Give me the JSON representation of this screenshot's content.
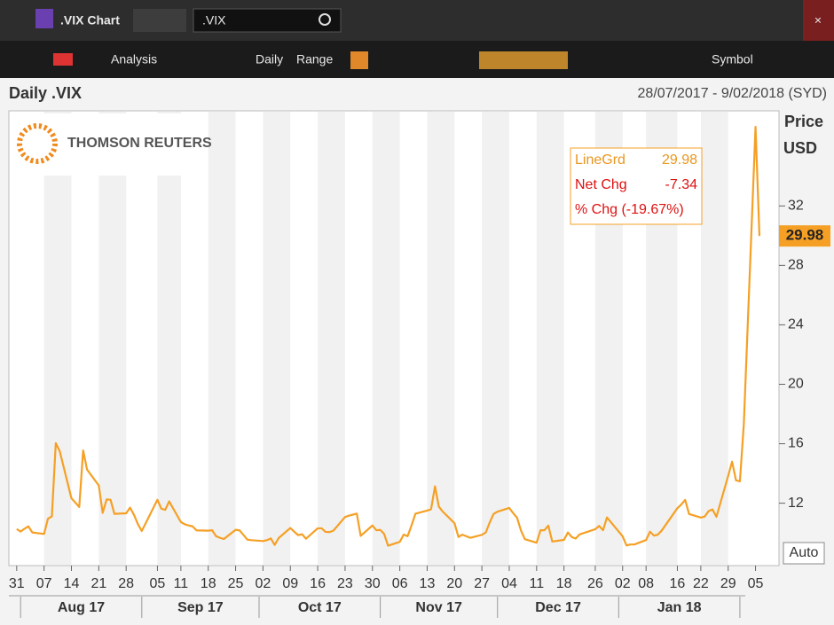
{
  "window": {
    "title": ".VIX Chart",
    "search": ".VIX"
  },
  "toolbar": {
    "analysis": "Analysis",
    "interval": "Daily",
    "range": "Range",
    "symbol": "Symbol"
  },
  "chart_data": {
    "type": "line",
    "title": "Daily .VIX",
    "subtitle": "28/07/2017 - 9/02/2018 (SYD)",
    "logo": "THOMSON REUTERS",
    "y_label": "Price",
    "y_unit": "USD",
    "auto_button": "Auto",
    "info": {
      "net_chg_label": "Net Chg",
      "net_chg": "-7.34",
      "pct_chg": "% Chg (-19.67%)",
      "last": "29.98"
    },
    "xlim": [
      "2017-07-29",
      "2018-02-11"
    ],
    "ylim": [
      7.8,
      38.4
    ],
    "yticks": [
      12,
      16,
      20,
      24,
      28,
      32
    ],
    "xticks": [
      {
        "value": "2017-07-31",
        "label": "31"
      },
      {
        "value": "2017-08-07",
        "label": "07"
      },
      {
        "value": "2017-08-14",
        "label": "14"
      },
      {
        "value": "2017-08-21",
        "label": "21"
      },
      {
        "value": "2017-08-28",
        "label": "28"
      },
      {
        "value": "2017-09-05",
        "label": "05"
      },
      {
        "value": "2017-09-11",
        "label": "11"
      },
      {
        "value": "2017-09-18",
        "label": "18"
      },
      {
        "value": "2017-09-25",
        "label": "25"
      },
      {
        "value": "2017-10-02",
        "label": "02"
      },
      {
        "value": "2017-10-09",
        "label": "09"
      },
      {
        "value": "2017-10-16",
        "label": "16"
      },
      {
        "value": "2017-10-23",
        "label": "23"
      },
      {
        "value": "2017-10-30",
        "label": "30"
      },
      {
        "value": "2017-11-06",
        "label": "06"
      },
      {
        "value": "2017-11-13",
        "label": "13"
      },
      {
        "value": "2017-11-20",
        "label": "20"
      },
      {
        "value": "2017-11-27",
        "label": "27"
      },
      {
        "value": "2017-12-04",
        "label": "04"
      },
      {
        "value": "2017-12-11",
        "label": "11"
      },
      {
        "value": "2017-12-18",
        "label": "18"
      },
      {
        "value": "2017-12-26",
        "label": "26"
      },
      {
        "value": "2018-01-02",
        "label": "02"
      },
      {
        "value": "2018-01-08",
        "label": "08"
      },
      {
        "value": "2018-01-16",
        "label": "16"
      },
      {
        "value": "2018-01-22",
        "label": "22"
      },
      {
        "value": "2018-01-29",
        "label": "29"
      },
      {
        "value": "2018-02-05",
        "label": "05"
      }
    ],
    "month_labels": [
      {
        "value": "2017-08",
        "label": "Aug 17"
      },
      {
        "value": "2017-09",
        "label": "Sep 17"
      },
      {
        "value": "2017-10",
        "label": "Oct 17"
      },
      {
        "value": "2017-11",
        "label": "Nov 17"
      },
      {
        "value": "2017-12",
        "label": "Dec 17"
      },
      {
        "value": "2018-01",
        "label": "Jan 18"
      }
    ],
    "x": [
      "2017-07-31",
      "2017-08-01",
      "2017-08-02",
      "2017-08-03",
      "2017-08-04",
      "2017-08-07",
      "2017-08-08",
      "2017-08-09",
      "2017-08-10",
      "2017-08-11",
      "2017-08-14",
      "2017-08-15",
      "2017-08-16",
      "2017-08-17",
      "2017-08-18",
      "2017-08-21",
      "2017-08-22",
      "2017-08-23",
      "2017-08-24",
      "2017-08-25",
      "2017-08-28",
      "2017-08-29",
      "2017-08-30",
      "2017-08-31",
      "2017-09-01",
      "2017-09-05",
      "2017-09-06",
      "2017-09-07",
      "2017-09-08",
      "2017-09-11",
      "2017-09-12",
      "2017-09-13",
      "2017-09-14",
      "2017-09-15",
      "2017-09-18",
      "2017-09-19",
      "2017-09-20",
      "2017-09-21",
      "2017-09-22",
      "2017-09-25",
      "2017-09-26",
      "2017-09-27",
      "2017-09-28",
      "2017-09-29",
      "2017-10-02",
      "2017-10-03",
      "2017-10-04",
      "2017-10-05",
      "2017-10-06",
      "2017-10-09",
      "2017-10-10",
      "2017-10-11",
      "2017-10-12",
      "2017-10-13",
      "2017-10-16",
      "2017-10-17",
      "2017-10-18",
      "2017-10-19",
      "2017-10-20",
      "2017-10-23",
      "2017-10-24",
      "2017-10-25",
      "2017-10-26",
      "2017-10-27",
      "2017-10-30",
      "2017-10-31",
      "2017-11-01",
      "2017-11-02",
      "2017-11-03",
      "2017-11-06",
      "2017-11-07",
      "2017-11-08",
      "2017-11-09",
      "2017-11-10",
      "2017-11-13",
      "2017-11-14",
      "2017-11-15",
      "2017-11-16",
      "2017-11-17",
      "2017-11-20",
      "2017-11-21",
      "2017-11-22",
      "2017-11-24",
      "2017-11-27",
      "2017-11-28",
      "2017-11-29",
      "2017-11-30",
      "2017-12-01",
      "2017-12-04",
      "2017-12-05",
      "2017-12-06",
      "2017-12-07",
      "2017-12-08",
      "2017-12-11",
      "2017-12-12",
      "2017-12-13",
      "2017-12-14",
      "2017-12-15",
      "2017-12-18",
      "2017-12-19",
      "2017-12-20",
      "2017-12-21",
      "2017-12-22",
      "2017-12-26",
      "2017-12-27",
      "2017-12-28",
      "2017-12-29",
      "2018-01-02",
      "2018-01-03",
      "2018-01-04",
      "2018-01-05",
      "2018-01-08",
      "2018-01-09",
      "2018-01-10",
      "2018-01-11",
      "2018-01-12",
      "2018-01-16",
      "2018-01-17",
      "2018-01-18",
      "2018-01-19",
      "2018-01-22",
      "2018-01-23",
      "2018-01-24",
      "2018-01-25",
      "2018-01-26",
      "2018-01-29",
      "2018-01-30",
      "2018-01-31",
      "2018-02-01",
      "2018-02-02",
      "2018-02-05",
      "2018-02-06"
    ],
    "series": [
      {
        "name": "LineGrd",
        "color": "#f5a025",
        "values": [
          10.26,
          10.09,
          10.28,
          10.44,
          10.03,
          9.93,
          10.96,
          11.11,
          16.04,
          15.51,
          12.33,
          12.04,
          11.74,
          15.55,
          14.26,
          13.19,
          11.35,
          12.25,
          12.23,
          11.28,
          11.32,
          11.7,
          11.22,
          10.59,
          10.13,
          12.23,
          11.63,
          11.55,
          12.12,
          10.73,
          10.58,
          10.5,
          10.44,
          10.17,
          10.15,
          10.18,
          9.78,
          9.67,
          9.59,
          10.21,
          10.17,
          9.87,
          9.55,
          9.51,
          9.45,
          9.51,
          9.63,
          9.19,
          9.65,
          10.33,
          10.08,
          9.85,
          9.91,
          9.61,
          10.31,
          10.31,
          10.07,
          10.05,
          10.15,
          11.07,
          11.16,
          11.23,
          11.3,
          9.8,
          10.5,
          10.18,
          10.2,
          9.93,
          9.14,
          9.4,
          9.89,
          9.78,
          10.5,
          11.29,
          11.5,
          11.59,
          13.13,
          11.76,
          11.43,
          10.65,
          9.73,
          9.88,
          9.67,
          9.87,
          10.03,
          10.7,
          11.28,
          11.43,
          11.68,
          11.33,
          11.02,
          10.16,
          9.58,
          9.34,
          10.18,
          10.18,
          10.49,
          9.42,
          9.53,
          10.03,
          9.72,
          9.62,
          9.9,
          10.25,
          10.47,
          10.18,
          11.04,
          9.77,
          9.15,
          9.22,
          9.22,
          9.52,
          10.08,
          9.82,
          9.88,
          10.16,
          11.66,
          11.91,
          12.22,
          11.27,
          11.03,
          11.1,
          11.47,
          11.58,
          11.08,
          13.84,
          14.79,
          13.54,
          13.47,
          17.31,
          37.32,
          29.98
        ]
      }
    ]
  }
}
